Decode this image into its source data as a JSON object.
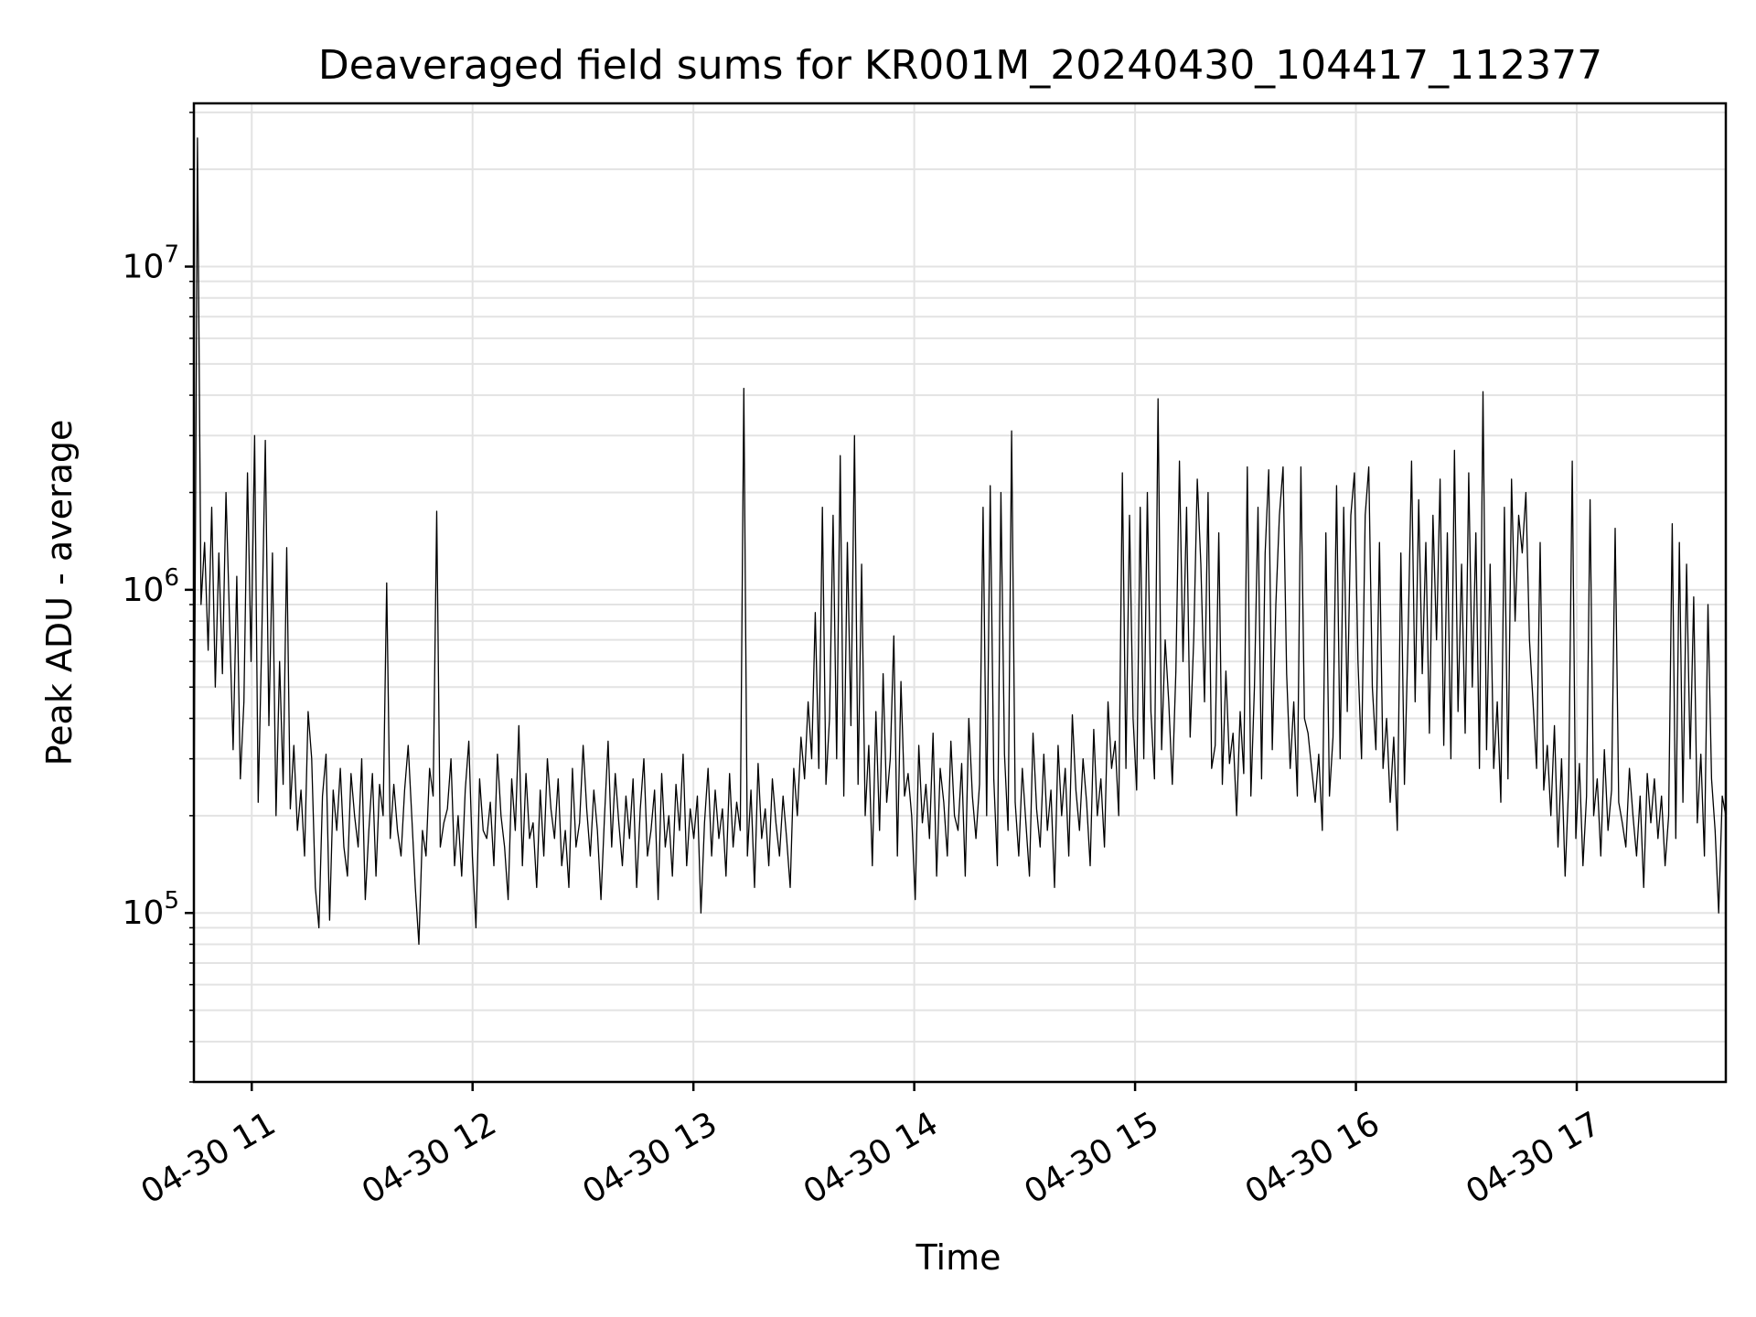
{
  "chart_data": {
    "type": "line",
    "title": "Deaveraged field sums for KR001M_20240430_104417_112377",
    "xlabel": "Time",
    "ylabel": "Peak ADU - average",
    "yscale": "log",
    "xlim": [
      "2024-04-30T10:44:17",
      "2024-04-30T17:40:30"
    ],
    "ylim": [
      30000,
      32000000
    ],
    "grid": true,
    "colors": {
      "line": "#000000",
      "grid": "#e3e3e3",
      "frame": "#000000"
    },
    "x_tick_values": [
      "2024-04-30T11:00",
      "2024-04-30T12:00",
      "2024-04-30T13:00",
      "2024-04-30T14:00",
      "2024-04-30T15:00",
      "2024-04-30T16:00",
      "2024-04-30T17:00"
    ],
    "x_ticks": [
      "04-30 11",
      "04-30 12",
      "04-30 13",
      "04-30 14",
      "04-30 15",
      "04-30 16",
      "04-30 17"
    ],
    "y_ticks": [
      {
        "value": 100000,
        "base": "10",
        "exp": "5"
      },
      {
        "value": 1000000,
        "base": "10",
        "exp": "6"
      },
      {
        "value": 10000000,
        "base": "10",
        "exp": "7"
      }
    ],
    "series": [
      {
        "x_start": "2024-04-30T10:44:17",
        "x_end": "2024-04-30T17:40:30",
        "y": [
          170000,
          25000000,
          900000,
          1400000,
          650000,
          1800000,
          500000,
          1300000,
          550000,
          2000000,
          800000,
          320000,
          1100000,
          260000,
          450000,
          2300000,
          600000,
          3000000,
          220000,
          700000,
          2900000,
          380000,
          1300000,
          200000,
          600000,
          250000,
          1350000,
          210000,
          330000,
          180000,
          240000,
          150000,
          420000,
          300000,
          120000,
          90000,
          230000,
          310000,
          95000,
          240000,
          180000,
          280000,
          160000,
          130000,
          270000,
          200000,
          160000,
          300000,
          110000,
          180000,
          270000,
          130000,
          250000,
          200000,
          1050000,
          170000,
          250000,
          180000,
          150000,
          240000,
          330000,
          200000,
          120000,
          80000,
          180000,
          150000,
          280000,
          230000,
          1750000,
          160000,
          190000,
          210000,
          300000,
          140000,
          200000,
          130000,
          240000,
          340000,
          150000,
          90000,
          260000,
          180000,
          170000,
          220000,
          140000,
          310000,
          200000,
          160000,
          110000,
          260000,
          180000,
          380000,
          140000,
          270000,
          170000,
          190000,
          120000,
          240000,
          150000,
          300000,
          210000,
          170000,
          260000,
          140000,
          180000,
          120000,
          280000,
          160000,
          190000,
          330000,
          210000,
          150000,
          240000,
          180000,
          110000,
          200000,
          340000,
          160000,
          270000,
          190000,
          140000,
          230000,
          170000,
          260000,
          120000,
          210000,
          300000,
          150000,
          180000,
          240000,
          110000,
          270000,
          160000,
          200000,
          130000,
          250000,
          180000,
          310000,
          140000,
          210000,
          170000,
          230000,
          100000,
          190000,
          280000,
          150000,
          240000,
          170000,
          210000,
          130000,
          270000,
          160000,
          220000,
          180000,
          4200000,
          150000,
          240000,
          120000,
          290000,
          170000,
          210000,
          140000,
          260000,
          190000,
          150000,
          230000,
          170000,
          120000,
          280000,
          200000,
          350000,
          260000,
          450000,
          300000,
          850000,
          280000,
          1800000,
          250000,
          400000,
          1700000,
          300000,
          2600000,
          230000,
          1400000,
          380000,
          3000000,
          250000,
          1200000,
          200000,
          330000,
          140000,
          420000,
          180000,
          550000,
          220000,
          300000,
          720000,
          150000,
          520000,
          230000,
          270000,
          200000,
          110000,
          330000,
          190000,
          250000,
          170000,
          360000,
          130000,
          280000,
          220000,
          150000,
          340000,
          200000,
          180000,
          290000,
          130000,
          400000,
          230000,
          170000,
          250000,
          1800000,
          200000,
          2100000,
          260000,
          140000,
          2000000,
          310000,
          180000,
          3100000,
          220000,
          150000,
          280000,
          190000,
          130000,
          360000,
          210000,
          160000,
          310000,
          180000,
          240000,
          120000,
          330000,
          200000,
          280000,
          150000,
          410000,
          240000,
          180000,
          300000,
          220000,
          140000,
          370000,
          200000,
          260000,
          160000,
          450000,
          280000,
          340000,
          200000,
          2300000,
          280000,
          1700000,
          400000,
          240000,
          1800000,
          300000,
          2000000,
          420000,
          260000,
          3900000,
          320000,
          700000,
          450000,
          250000,
          560000,
          2500000,
          600000,
          1800000,
          350000,
          700000,
          2200000,
          1200000,
          450000,
          2000000,
          280000,
          330000,
          1500000,
          250000,
          560000,
          290000,
          360000,
          200000,
          420000,
          270000,
          2400000,
          230000,
          500000,
          1800000,
          260000,
          1300000,
          2350000,
          320000,
          900000,
          1700000,
          2400000,
          550000,
          280000,
          450000,
          230000,
          2400000,
          400000,
          360000,
          280000,
          220000,
          310000,
          180000,
          1500000,
          230000,
          350000,
          2100000,
          300000,
          1800000,
          420000,
          1700000,
          2300000,
          600000,
          300000,
          1700000,
          2400000,
          500000,
          320000,
          1400000,
          280000,
          400000,
          220000,
          350000,
          180000,
          1300000,
          250000,
          700000,
          2500000,
          450000,
          1900000,
          550000,
          1400000,
          360000,
          1700000,
          700000,
          2200000,
          330000,
          1500000,
          300000,
          2700000,
          420000,
          1200000,
          360000,
          2300000,
          500000,
          1500000,
          280000,
          4100000,
          320000,
          1200000,
          280000,
          450000,
          220000,
          1800000,
          260000,
          2200000,
          800000,
          1700000,
          1300000,
          2000000,
          700000,
          450000,
          280000,
          1400000,
          240000,
          330000,
          200000,
          380000,
          160000,
          300000,
          130000,
          250000,
          2500000,
          170000,
          290000,
          140000,
          230000,
          1900000,
          200000,
          260000,
          150000,
          320000,
          180000,
          240000,
          1550000,
          220000,
          190000,
          160000,
          280000,
          200000,
          150000,
          230000,
          120000,
          270000,
          190000,
          260000,
          170000,
          230000,
          140000,
          200000,
          1600000,
          170000,
          1400000,
          220000,
          1200000,
          300000,
          950000,
          190000,
          310000,
          150000,
          900000,
          260000,
          180000,
          100000,
          230000,
          200000
        ]
      }
    ]
  }
}
